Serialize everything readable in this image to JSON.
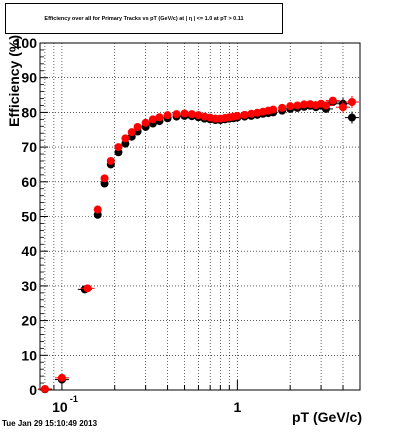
{
  "footer": {
    "timestamp": "Tue Jan 29 15:10:49 2013"
  },
  "colors": {
    "series_black": "#000000",
    "series_red": "#ff0000",
    "grid": "#000000"
  },
  "chart_data": {
    "type": "scatter",
    "title": "Efficiency over all for Primary Tracks vs pT (GeV/c) at | η | <= 1.0 at pT > 0.11",
    "xlabel": "pT (GeV/c)",
    "ylabel": "Efficiency (%)",
    "xscale": "log",
    "xlim": [
      0.075,
      5.0
    ],
    "ylim": [
      0,
      100
    ],
    "grid": true,
    "y_ticks": [
      0,
      10,
      20,
      30,
      40,
      50,
      60,
      70,
      80,
      90,
      100
    ],
    "x_tick_labels": [
      {
        "value": 0.1,
        "base": "10",
        "exp": "-1"
      },
      {
        "value": 1,
        "base": "1",
        "exp": ""
      }
    ],
    "series": [
      {
        "color": "#000000",
        "x": [
          0.08,
          0.1,
          0.135,
          0.16,
          0.175,
          0.19,
          0.21,
          0.23,
          0.25,
          0.27,
          0.3,
          0.33,
          0.36,
          0.4,
          0.45,
          0.5,
          0.55,
          0.6,
          0.65,
          0.7,
          0.75,
          0.8,
          0.85,
          0.9,
          0.95,
          1.0,
          1.1,
          1.2,
          1.3,
          1.4,
          1.5,
          1.6,
          1.8,
          2.0,
          2.2,
          2.4,
          2.6,
          2.8,
          3.0,
          3.2,
          3.5,
          4.0,
          4.5
        ],
        "y": [
          0.2,
          3.0,
          29.0,
          50.5,
          59.5,
          65.0,
          68.5,
          71.0,
          73.0,
          74.5,
          75.8,
          76.8,
          77.5,
          78.3,
          78.8,
          79.0,
          78.9,
          78.6,
          78.2,
          78.0,
          77.8,
          77.8,
          78.0,
          78.2,
          78.3,
          78.5,
          78.8,
          79.0,
          79.3,
          79.6,
          79.8,
          80.0,
          80.5,
          81.0,
          81.3,
          81.6,
          81.9,
          81.5,
          82.0,
          81.0,
          83.0,
          82.5,
          78.5
        ]
      },
      {
        "color": "#ff0000",
        "x": [
          0.08,
          0.1,
          0.14,
          0.16,
          0.175,
          0.19,
          0.21,
          0.23,
          0.25,
          0.27,
          0.3,
          0.33,
          0.36,
          0.4,
          0.45,
          0.5,
          0.55,
          0.6,
          0.65,
          0.7,
          0.75,
          0.8,
          0.85,
          0.9,
          0.95,
          1.0,
          1.1,
          1.2,
          1.3,
          1.4,
          1.5,
          1.6,
          1.8,
          2.0,
          2.2,
          2.4,
          2.6,
          2.8,
          3.0,
          3.2,
          3.5,
          4.0,
          4.5
        ],
        "y": [
          0.3,
          3.5,
          29.3,
          52.0,
          61.0,
          66.0,
          70.0,
          72.5,
          74.3,
          75.8,
          77.0,
          78.0,
          78.6,
          79.2,
          79.5,
          79.7,
          79.5,
          79.2,
          78.8,
          78.5,
          78.2,
          78.2,
          78.4,
          78.6,
          78.8,
          79.0,
          79.3,
          79.6,
          79.9,
          80.2,
          80.5,
          80.8,
          81.3,
          81.8,
          82.0,
          82.3,
          82.4,
          82.1,
          82.5,
          82.0,
          83.4,
          81.5,
          83.0
        ]
      }
    ]
  }
}
